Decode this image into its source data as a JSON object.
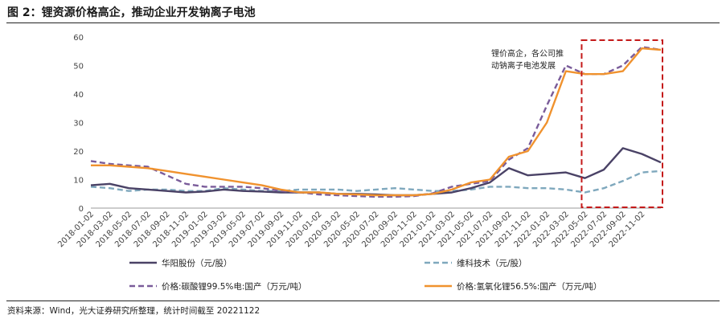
{
  "header": {
    "title": "图 2：锂资源价格高企，推动企业开发钠离子电池"
  },
  "footer": {
    "source": "资料来源：Wind，光大证券研究所整理，统计时间截至 20221122"
  },
  "chart_data": {
    "type": "line",
    "title": "",
    "xlabel": "",
    "ylabel": "",
    "ylim": [
      0,
      60
    ],
    "yticks": [
      "0",
      "10",
      "20",
      "30",
      "40",
      "50",
      "60"
    ],
    "x": [
      "2018-01-02",
      "2018-03-02",
      "2018-05-02",
      "2018-07-02",
      "2018-09-02",
      "2018-11-02",
      "2019-01-02",
      "2019-03-02",
      "2019-05-02",
      "2019-07-02",
      "2019-09-02",
      "2019-11-02",
      "2020-01-02",
      "2020-03-02",
      "2020-05-02",
      "2020-07-02",
      "2020-09-02",
      "2020-11-02",
      "2021-01-02",
      "2021-03-02",
      "2021-05-02",
      "2021-07-02",
      "2021-09-02",
      "2021-11-02",
      "2022-01-02",
      "2022-03-02",
      "2022-05-02",
      "2022-07-02",
      "2022-09-02",
      "2022-11-02",
      "2022-11-22"
    ],
    "xtick_labels": [
      "2018-01-02",
      "2018-03-02",
      "2018-05-02",
      "2018-07-02",
      "2018-09-02",
      "2018-11-02",
      "2019-01-02",
      "2019-03-02",
      "2019-05-02",
      "2019-07-02",
      "2019-09-02",
      "2019-11-02",
      "2020-01-02",
      "2020-03-02",
      "2020-05-02",
      "2020-07-02",
      "2020-09-02",
      "2020-11-02",
      "2021-01-02",
      "2021-03-02",
      "2021-05-02",
      "2021-07-02",
      "2021-09-02",
      "2021-11-02",
      "2022-01-02",
      "2022-03-02",
      "2022-05-02",
      "2022-07-02",
      "2022-09-02",
      "2022-11-02"
    ],
    "series": [
      {
        "name": "华阳股份（元/股）",
        "color": "#4a4266",
        "style": "solid",
        "values": [
          8,
          8.5,
          7,
          6.5,
          6,
          5.5,
          5.8,
          6.5,
          6,
          5.8,
          5.5,
          5.5,
          5.5,
          5,
          5,
          4.8,
          4.5,
          4.5,
          5,
          5.5,
          7,
          9,
          14,
          11.5,
          12,
          12.5,
          10.5,
          13.5,
          21,
          19,
          16
        ]
      },
      {
        "name": "维科技术（元/股）",
        "color": "#7fa8bd",
        "style": "dashed",
        "values": [
          7.5,
          7,
          6,
          6.5,
          6.5,
          6,
          6,
          7,
          6.5,
          6,
          6,
          6.5,
          6.5,
          6.5,
          6,
          6.5,
          7,
          6.5,
          6,
          6,
          6.5,
          7.5,
          7.5,
          7,
          7,
          6.5,
          5.5,
          7,
          9.5,
          12.5,
          13
        ]
      },
      {
        "name": "价格:碳酸锂99.5%电:国产（万元/吨）",
        "color": "#7a5c9a",
        "style": "dashed",
        "values": [
          16.5,
          15.5,
          15,
          14.5,
          11.5,
          8.5,
          7.5,
          7.5,
          7.5,
          7,
          6,
          5.5,
          4.8,
          4.5,
          4.2,
          4,
          4,
          4.2,
          5.2,
          7.5,
          8.5,
          9.5,
          17,
          21,
          36,
          50,
          47,
          47,
          50,
          56.5,
          55.5
        ]
      },
      {
        "name": "价格:氢氧化锂56.5%:国产（万元/吨）",
        "color": "#f0922e",
        "style": "solid",
        "values": [
          15,
          15,
          14.5,
          14,
          13,
          12,
          11,
          10,
          9,
          8,
          6.5,
          5.5,
          5.5,
          5,
          4.8,
          4.5,
          4.5,
          4.5,
          5,
          6.5,
          9,
          10,
          18,
          20,
          30,
          48,
          47,
          47,
          48,
          56,
          55.5
        ]
      }
    ],
    "annotation": {
      "lines": [
        "锂价高企，各公司推",
        "动钠离子电池发展"
      ]
    },
    "highlight": {
      "from_index": 26,
      "to_index": 30,
      "color": "#c41a1a"
    },
    "grid": false,
    "legend": "bottom"
  }
}
